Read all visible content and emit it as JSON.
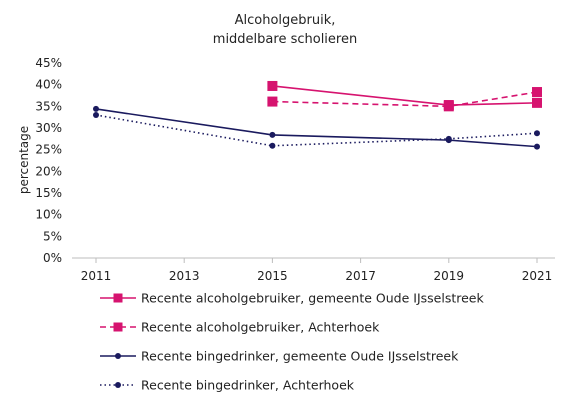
{
  "chart_data": {
    "type": "line",
    "title_lines": [
      "Alcoholgebruik,",
      "middelbare scholieren"
    ],
    "xlabel": "",
    "ylabel": "percentage",
    "x_ticks": [
      "2011",
      "2013",
      "2015",
      "2017",
      "2019",
      "2021"
    ],
    "x_range": [
      2011,
      2021
    ],
    "y_ticks": [
      "0%",
      "5%",
      "10%",
      "15%",
      "20%",
      "25%",
      "30%",
      "35%",
      "40%",
      "45%"
    ],
    "ylim": [
      0,
      45
    ],
    "grid": false,
    "legend_position": "bottom",
    "series": [
      {
        "name": "Recente alcoholgebruiker, gemeente Oude IJsselstreek",
        "color": "#d6136f",
        "line_style": "solid",
        "marker": "square",
        "points": [
          {
            "x": 2015,
            "y": 39.7
          },
          {
            "x": 2019,
            "y": 35.3
          },
          {
            "x": 2021,
            "y": 35.8
          }
        ]
      },
      {
        "name": "Recente alcoholgebruiker, Achterhoek",
        "color": "#d6136f",
        "line_style": "dashed",
        "marker": "square",
        "points": [
          {
            "x": 2015,
            "y": 36.1
          },
          {
            "x": 2019,
            "y": 35.0
          },
          {
            "x": 2021,
            "y": 38.3
          }
        ]
      },
      {
        "name": "Recente bingedrinker, gemeente Oude IJsselstreek",
        "color": "#1a1a5e",
        "line_style": "solid",
        "marker": "circle",
        "points": [
          {
            "x": 2011,
            "y": 34.4
          },
          {
            "x": 2015,
            "y": 28.4
          },
          {
            "x": 2019,
            "y": 27.2
          },
          {
            "x": 2021,
            "y": 25.7
          }
        ]
      },
      {
        "name": "Recente bingedrinker, Achterhoek",
        "color": "#1a1a5e",
        "line_style": "dotted",
        "marker": "circle",
        "points": [
          {
            "x": 2011,
            "y": 33.0
          },
          {
            "x": 2015,
            "y": 25.9
          },
          {
            "x": 2019,
            "y": 27.5
          },
          {
            "x": 2021,
            "y": 28.8
          }
        ]
      }
    ]
  }
}
